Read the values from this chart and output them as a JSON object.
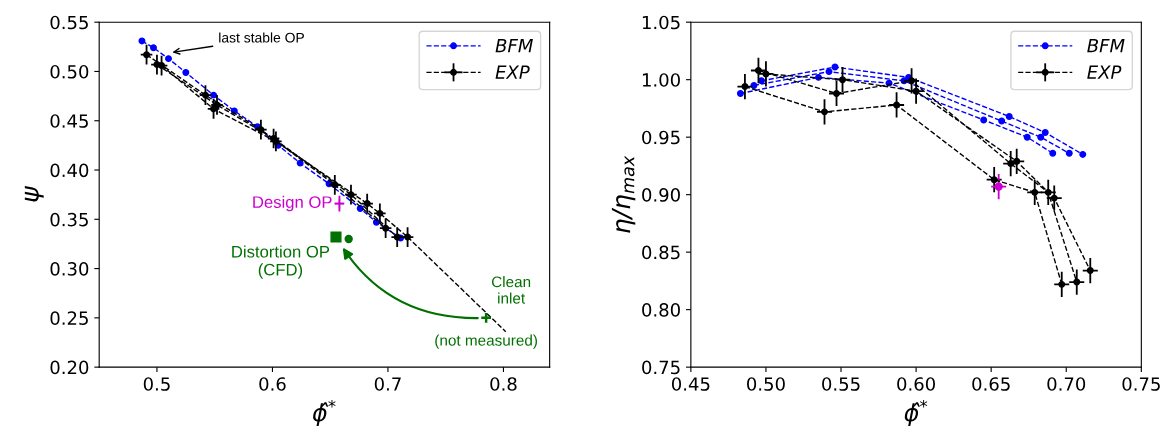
{
  "chart_data": [
    {
      "type": "line",
      "xlabel": "ϕ̂$^{*}$",
      "ylabel": "ψ",
      "xlim": [
        0.45,
        0.84
      ],
      "ylim": [
        0.2,
        0.55
      ],
      "xticks": [
        0.5,
        0.6,
        0.7,
        0.8
      ],
      "yticks": [
        {
          "value": 0.2,
          "label": "0.20"
        },
        {
          "value": 0.25,
          "label": "0.25"
        },
        {
          "value": 0.3,
          "label": "0.30"
        },
        {
          "value": 0.35,
          "label": "0.35"
        },
        {
          "value": 0.4,
          "label": "0.40"
        },
        {
          "value": 0.45,
          "label": "0.45"
        },
        {
          "value": 0.5,
          "label": "0.50"
        },
        {
          "value": 0.55,
          "label": "0.55"
        }
      ],
      "grid": false,
      "legend": "top right",
      "series": [
        {
          "name": "BFM",
          "color": "#0000ff",
          "type": "line",
          "marker": "circle",
          "line_style": "dashed",
          "x": [
            0.487,
            0.497,
            0.51,
            0.525,
            0.549,
            0.567,
            0.587,
            0.605,
            0.624,
            0.649,
            0.676,
            0.69,
            0.711
          ],
          "values": [
            0.531,
            0.524,
            0.513,
            0.499,
            0.476,
            0.46,
            0.444,
            0.425,
            0.407,
            0.386,
            0.361,
            0.347,
            0.331
          ]
        },
        {
          "name": "EXP",
          "color": "#000000",
          "type": "line",
          "marker": "circle",
          "line_style": "dashed",
          "x": [
            0.491,
            0.542,
            0.59,
            0.654,
            0.698
          ],
          "values": [
            0.517,
            0.476,
            0.441,
            0.385,
            0.341
          ],
          "errors": [
            0.01,
            0.01,
            0.01,
            0.01,
            0.01
          ],
          "xerrors": [
            0.005,
            0.005,
            0.005,
            0.005,
            0.005
          ]
        },
        {
          "color": "#000000",
          "type": "line",
          "marker": "circle",
          "line_style": "dashed",
          "x": [
            0.5,
            0.552,
            0.601,
            0.668,
            0.708
          ],
          "values": [
            0.507,
            0.466,
            0.432,
            0.375,
            0.332
          ],
          "errors": [
            0.01,
            0.01,
            0.01,
            0.01,
            0.01
          ],
          "xerrors": [
            0.005,
            0.005,
            0.005,
            0.005,
            0.005
          ]
        },
        {
          "color": "#000000",
          "type": "line",
          "marker": "circle",
          "line_style": "dashed",
          "x": [
            0.504,
            0.549,
            0.603,
            0.682,
            0.693,
            0.717
          ],
          "values": [
            0.506,
            0.462,
            0.429,
            0.366,
            0.356,
            0.332
          ],
          "errors": [
            0.01,
            0.01,
            0.01,
            0.01,
            0.01,
            0.01
          ],
          "xerrors": [
            0.005,
            0.005,
            0.005,
            0.005,
            0.005,
            0.005
          ]
        },
        {
          "color": "#000000",
          "type": "line",
          "marker": "none",
          "line_style": "dashed",
          "x": [
            0.717,
            0.802
          ],
          "values": [
            0.332,
            0.236
          ]
        },
        {
          "color": "#cc00cc",
          "type": "scatter",
          "marker": "cross",
          "x": [
            0.658
          ],
          "values": [
            0.366
          ],
          "errors": [
            0.008
          ],
          "xerrors": [
            0.004
          ]
        },
        {
          "color": "#007000",
          "type": "scatter",
          "marker": "square",
          "x": [
            0.655
          ],
          "values": [
            0.332
          ]
        },
        {
          "color": "#007000",
          "type": "scatter",
          "marker": "circle",
          "x": [
            0.666
          ],
          "values": [
            0.33
          ]
        },
        {
          "color": "#007000",
          "type": "scatter",
          "marker": "cross",
          "x": [
            0.785
          ],
          "values": [
            0.25
          ]
        }
      ],
      "annotations": [
        {
          "text": "last stable OP",
          "x": 0.511,
          "y": 0.519
        },
        {
          "text": "Design OP",
          "x": 0.658,
          "y": 0.366
        },
        {
          "text": "Distortion OP\n(CFD)",
          "x": 0.655,
          "y": 0.332
        },
        {
          "text": "Clean\ninlet",
          "x": 0.785,
          "y": 0.25
        },
        {
          "text": "(not measured)",
          "x": 0.785,
          "y": 0.25
        }
      ]
    },
    {
      "type": "line",
      "xlabel": "ϕ̂$^{*}$",
      "ylabel": "η/η$_{max}$",
      "xlim": [
        0.45,
        0.75
      ],
      "ylim": [
        0.75,
        1.05
      ],
      "xticks": [
        {
          "value": 0.45,
          "label": "0.45"
        },
        {
          "value": 0.5,
          "label": "0.50"
        },
        {
          "value": 0.55,
          "label": "0.55"
        },
        {
          "value": 0.6,
          "label": "0.60"
        },
        {
          "value": 0.65,
          "label": "0.65"
        },
        {
          "value": 0.7,
          "label": "0.70"
        },
        {
          "value": 0.75,
          "label": "0.75"
        }
      ],
      "yticks": [
        {
          "value": 0.75,
          "label": "0.75"
        },
        {
          "value": 0.8,
          "label": "0.80"
        },
        {
          "value": 0.85,
          "label": "0.85"
        },
        {
          "value": 0.9,
          "label": "0.90"
        },
        {
          "value": 0.95,
          "label": "0.95"
        },
        {
          "value": 1.0,
          "label": "1.00"
        },
        {
          "value": 1.05,
          "label": "1.05"
        }
      ],
      "grid": false,
      "legend": "top right",
      "series": [
        {
          "name": "BFM",
          "color": "#0000ff",
          "type": "line",
          "marker": "circle",
          "line_style": "dashed",
          "x": [
            0.483,
            0.535,
            0.582,
            0.645,
            0.674,
            0.691
          ],
          "values": [
            0.988,
            1.002,
            0.997,
            0.965,
            0.95,
            0.936
          ]
        },
        {
          "color": "#0000ff",
          "type": "line",
          "marker": "circle",
          "line_style": "dashed",
          "x": [
            0.492,
            0.542,
            0.592,
            0.657,
            0.683,
            0.702
          ],
          "values": [
            0.995,
            1.007,
            0.999,
            0.964,
            0.95,
            0.936
          ]
        },
        {
          "color": "#0000ff",
          "type": "line",
          "marker": "circle",
          "line_style": "dashed",
          "x": [
            0.497,
            0.546,
            0.595,
            0.662,
            0.686,
            0.711
          ],
          "values": [
            0.999,
            1.011,
            1.002,
            0.968,
            0.954,
            0.935
          ]
        },
        {
          "name": "EXP",
          "color": "#000000",
          "type": "line",
          "marker": "circle",
          "line_style": "dashed",
          "x": [
            0.486,
            0.539,
            0.587,
            0.652,
            0.679,
            0.697
          ],
          "values": [
            0.994,
            0.972,
            0.978,
            0.913,
            0.902,
            0.822
          ],
          "errors": [
            0.011,
            0.011,
            0.011,
            0.011,
            0.011,
            0.011
          ],
          "xerrors": [
            0.005,
            0.005,
            0.005,
            0.005,
            0.005,
            0.005
          ]
        },
        {
          "color": "#000000",
          "type": "line",
          "marker": "circle",
          "line_style": "dashed",
          "x": [
            0.495,
            0.547,
            0.597,
            0.663,
            0.688,
            0.707
          ],
          "values": [
            1.008,
            0.988,
            0.999,
            0.927,
            0.902,
            0.824
          ],
          "errors": [
            0.011,
            0.011,
            0.011,
            0.011,
            0.011,
            0.011
          ],
          "xerrors": [
            0.005,
            0.005,
            0.005,
            0.005,
            0.005,
            0.005
          ]
        },
        {
          "color": "#000000",
          "type": "line",
          "marker": "circle",
          "line_style": "dashed",
          "x": [
            0.5,
            0.551,
            0.6,
            0.667,
            0.692,
            0.716
          ],
          "values": [
            1.005,
            1.0,
            0.99,
            0.929,
            0.897,
            0.834
          ],
          "errors": [
            0.011,
            0.011,
            0.011,
            0.011,
            0.011,
            0.011
          ],
          "xerrors": [
            0.005,
            0.005,
            0.005,
            0.005,
            0.005,
            0.005
          ]
        },
        {
          "color": "#cc00cc",
          "type": "scatter",
          "marker": "circle",
          "x": [
            0.655
          ],
          "values": [
            0.907
          ],
          "errors": [
            0.011
          ],
          "xerrors": [
            0.005
          ]
        }
      ]
    }
  ]
}
